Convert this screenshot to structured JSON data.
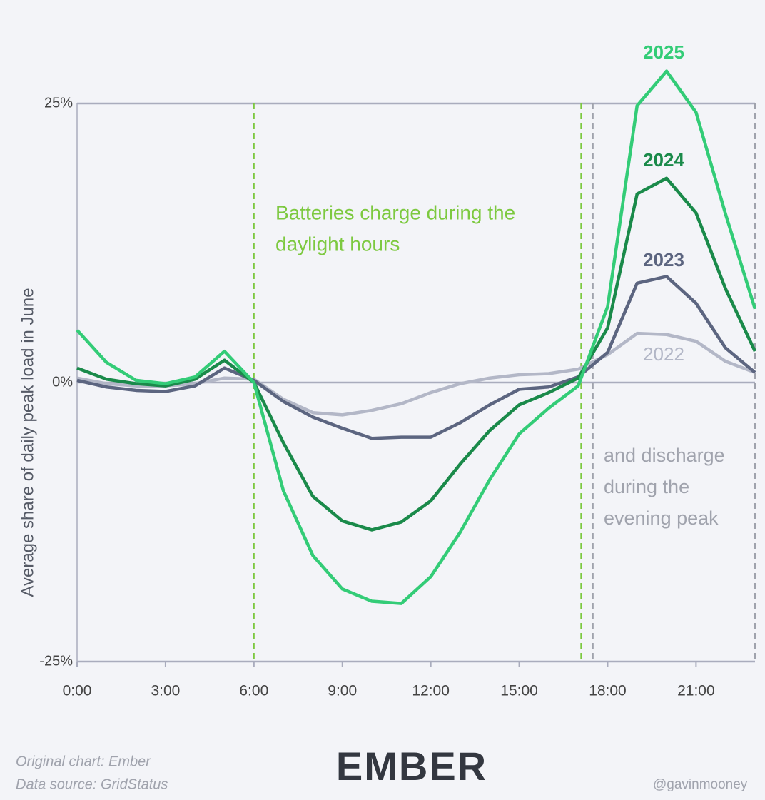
{
  "chart_data": {
    "type": "line",
    "y_label": "Average share of daily peak load in June",
    "x": [
      0,
      1,
      2,
      3,
      4,
      5,
      6,
      7,
      8,
      9,
      10,
      11,
      12,
      13,
      14,
      15,
      16,
      17,
      18,
      19,
      20,
      21,
      22,
      23
    ],
    "series": [
      {
        "name": "2022",
        "color": "#b3b7c7",
        "values": [
          0.4,
          -0.1,
          -0.3,
          -0.3,
          -0.1,
          0.4,
          0.3,
          -1.5,
          -2.7,
          -2.9,
          -2.5,
          -1.9,
          -0.9,
          -0.1,
          0.4,
          0.7,
          0.8,
          1.2,
          2.5,
          4.4,
          4.3,
          3.7,
          1.9,
          0.9
        ]
      },
      {
        "name": "2023",
        "color": "#5c6580",
        "values": [
          0.2,
          -0.4,
          -0.7,
          -0.8,
          -0.3,
          1.3,
          0.2,
          -1.7,
          -3.1,
          -4.1,
          -5.0,
          -4.9,
          -4.9,
          -3.6,
          -2.0,
          -0.6,
          -0.4,
          0.5,
          2.7,
          8.9,
          9.5,
          7.1,
          3.1,
          0.9
        ]
      },
      {
        "name": "2024",
        "color": "#1a8a4a",
        "values": [
          1.3,
          0.3,
          -0.1,
          -0.3,
          0.3,
          2.0,
          0,
          -5.4,
          -10.2,
          -12.4,
          -13.2,
          -12.5,
          -10.6,
          -7.3,
          -4.3,
          -2.0,
          -0.9,
          0.4,
          4.9,
          16.9,
          18.3,
          15.2,
          8.4,
          2.8
        ]
      },
      {
        "name": "2025",
        "color": "#33cc77",
        "values": [
          4.7,
          1.8,
          0.2,
          -0.1,
          0.5,
          2.8,
          0,
          -9.7,
          -15.5,
          -18.5,
          -19.6,
          -19.8,
          -17.4,
          -13.4,
          -8.7,
          -4.6,
          -2.3,
          -0.3,
          6.8,
          24.8,
          27.9,
          24.2,
          15.1,
          6.6
        ]
      }
    ],
    "xlim": [
      0,
      23
    ],
    "xticks": [
      {
        "value": 0,
        "label": "0:00"
      },
      {
        "value": 3,
        "label": "3:00"
      },
      {
        "value": 6,
        "label": "6:00"
      },
      {
        "value": 9,
        "label": "9:00"
      },
      {
        "value": 12,
        "label": "12:00"
      },
      {
        "value": 15,
        "label": "15:00"
      },
      {
        "value": 18,
        "label": "18:00"
      },
      {
        "value": 21,
        "label": "21:00"
      }
    ],
    "ylim": [
      -25,
      25
    ],
    "yticks": [
      {
        "value": -25,
        "label": "-25%"
      },
      {
        "value": 0,
        "label": "0%"
      },
      {
        "value": 25,
        "label": "25%"
      }
    ],
    "reference_lines": [
      {
        "x": 6,
        "color": "#7dc940"
      },
      {
        "x": 17.1,
        "color": "#7dc940"
      },
      {
        "x": 17.5,
        "color": "#a0a3ad"
      },
      {
        "x": 23,
        "color": "#a0a3ad"
      }
    ],
    "annotations": [
      {
        "lines": [
          "Batteries charge during the",
          "daylight hours"
        ],
        "color": "#7dc940"
      },
      {
        "lines": [
          "and discharge",
          "during the",
          "evening peak"
        ],
        "color": "#a0a3ad"
      }
    ],
    "footer": {
      "credit": "Original chart: Ember",
      "source": "Data source: GridStatus",
      "logo": "EMBER",
      "handle": "@gavinmooney"
    }
  }
}
